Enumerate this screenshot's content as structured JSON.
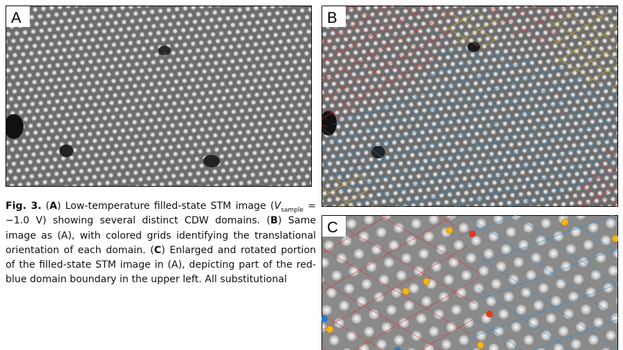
{
  "figure": {
    "panels": [
      "A",
      "B",
      "C"
    ],
    "caption": [
      "Fig. 3.",
      " (",
      "A",
      ") Low-temperature filled-state STM image (",
      "V",
      "sample",
      " = −1.0 V) showing several distinct CDW domains. (",
      "B",
      ") Same image as (A), with colored grids identifying the translational orientation of each domain. (",
      "C",
      ") Enlarged and rotated portion of the filled-state STM image in (A), depicting part of the red-blue domain boundary in the upper left. All substitutional"
    ]
  }
}
